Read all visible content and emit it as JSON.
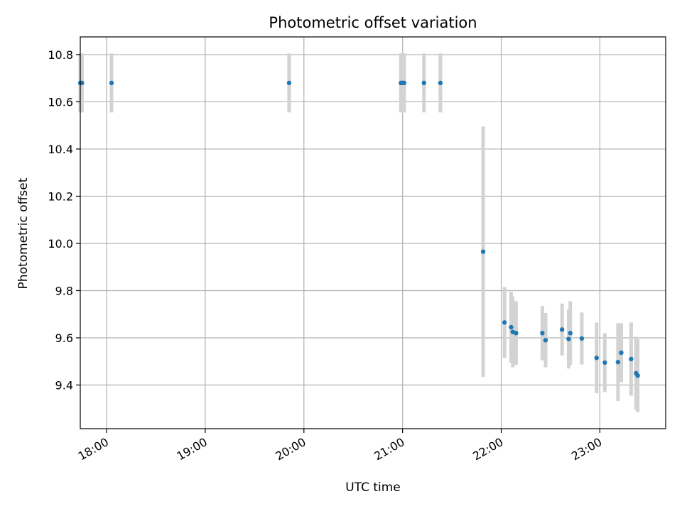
{
  "chart_data": {
    "type": "scatter",
    "title": "Photometric offset variation",
    "xlabel": "UTC time",
    "ylabel": "Photometric offset",
    "x_unit": "UTC time (HH:MM)",
    "xlim": [
      "17:44",
      "23:40"
    ],
    "ylim": [
      9.215,
      10.875
    ],
    "x_ticks": [
      "18:00",
      "19:00",
      "20:00",
      "21:00",
      "22:00",
      "23:00"
    ],
    "y_ticks": [
      9.4,
      9.6,
      9.8,
      10.0,
      10.2,
      10.4,
      10.6,
      10.8
    ],
    "y_tick_labels": [
      "9.4",
      "9.6",
      "9.8",
      "10.0",
      "10.2",
      "10.4",
      "10.6",
      "10.8"
    ],
    "grid": true,
    "legend": "none",
    "colors": {
      "points": "#1f77b4",
      "error_bars": "#d3d3d3",
      "grid": "#b0b0b0",
      "axes": "#000000"
    },
    "points": [
      {
        "x": "17:44",
        "y": 10.68,
        "err": 0.125
      },
      {
        "x": "17:45",
        "y": 10.68,
        "err": 0.125
      },
      {
        "x": "18:03",
        "y": 10.68,
        "err": 0.125
      },
      {
        "x": "19:51",
        "y": 10.68,
        "err": 0.125
      },
      {
        "x": "20:59",
        "y": 10.68,
        "err": 0.125
      },
      {
        "x": "21:00",
        "y": 10.68,
        "err": 0.125
      },
      {
        "x": "21:01",
        "y": 10.68,
        "err": 0.125
      },
      {
        "x": "21:13",
        "y": 10.68,
        "err": 0.125
      },
      {
        "x": "21:23",
        "y": 10.68,
        "err": 0.125
      },
      {
        "x": "21:49",
        "y": 9.965,
        "err": 0.53
      },
      {
        "x": "22:02",
        "y": 9.665,
        "err": 0.15
      },
      {
        "x": "22:06",
        "y": 9.645,
        "err": 0.15
      },
      {
        "x": "22:07",
        "y": 9.625,
        "err": 0.15
      },
      {
        "x": "22:09",
        "y": 9.62,
        "err": 0.135
      },
      {
        "x": "22:25",
        "y": 9.62,
        "err": 0.115
      },
      {
        "x": "22:27",
        "y": 9.59,
        "err": 0.115
      },
      {
        "x": "22:37",
        "y": 9.635,
        "err": 0.11
      },
      {
        "x": "22:41",
        "y": 9.595,
        "err": 0.125
      },
      {
        "x": "22:42",
        "y": 9.62,
        "err": 0.135
      },
      {
        "x": "22:49",
        "y": 9.597,
        "err": 0.11
      },
      {
        "x": "22:58",
        "y": 9.515,
        "err": 0.15
      },
      {
        "x": "23:03",
        "y": 9.495,
        "err": 0.125
      },
      {
        "x": "23:11",
        "y": 9.497,
        "err": 0.165
      },
      {
        "x": "23:13",
        "y": 9.537,
        "err": 0.125
      },
      {
        "x": "23:19",
        "y": 9.51,
        "err": 0.155
      },
      {
        "x": "23:22",
        "y": 9.45,
        "err": 0.155
      },
      {
        "x": "23:23",
        "y": 9.44,
        "err": 0.155
      }
    ]
  }
}
